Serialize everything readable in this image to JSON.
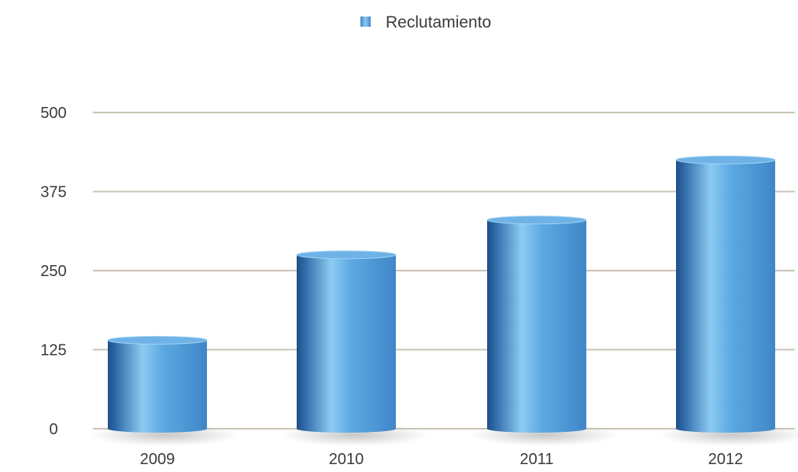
{
  "chart_data": {
    "type": "bar",
    "categories": [
      "2009",
      "2010",
      "2011",
      "2012"
    ],
    "series": [
      {
        "name": "Reclutamiento",
        "values": [
          140,
          275,
          330,
          425
        ]
      }
    ],
    "yticks": [
      "0",
      "125",
      "250",
      "375",
      "500"
    ],
    "ylim": [
      0,
      500
    ],
    "grid": true,
    "legend_position": "top-center",
    "colors": {
      "bar_light": "#8ccbf2",
      "bar_mid": "#4a96d3",
      "bar_dark": "#1f4f85",
      "bar_top": "#6fb2e6",
      "grid": "#cbc3b8",
      "axis_text": "#3a3a3a"
    }
  }
}
